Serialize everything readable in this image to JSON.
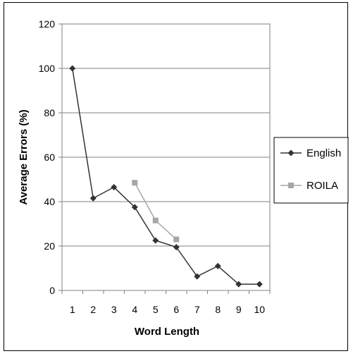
{
  "chart_data": {
    "type": "line",
    "title": "",
    "xlabel": "Word Length",
    "ylabel": "Average Errors (%)",
    "x": [
      1,
      2,
      3,
      4,
      5,
      6,
      7,
      8,
      9,
      10
    ],
    "x_tick_labels": [
      "1",
      "2",
      "3",
      "4",
      "5",
      "6",
      "7",
      "8",
      "9",
      "10"
    ],
    "ylim": [
      0,
      120
    ],
    "y_ticks": [
      0,
      20,
      40,
      60,
      80,
      100,
      120
    ],
    "y_tick_labels": [
      "0",
      "20",
      "40",
      "60",
      "80",
      "100",
      "120"
    ],
    "grid": true,
    "legend_position": "right",
    "series": [
      {
        "name": "English",
        "color": "#333333",
        "marker": "diamond",
        "x": [
          1,
          2,
          3,
          4,
          5,
          6,
          7,
          8,
          9,
          10
        ],
        "values": [
          100,
          41.5,
          46.5,
          37.5,
          22.5,
          19.5,
          6.3,
          11,
          2.8,
          2.8
        ]
      },
      {
        "name": "ROILA",
        "color": "#a6a6a6",
        "marker": "square",
        "x": [
          4,
          5,
          6
        ],
        "values": [
          48.5,
          31.5,
          23
        ]
      }
    ]
  }
}
